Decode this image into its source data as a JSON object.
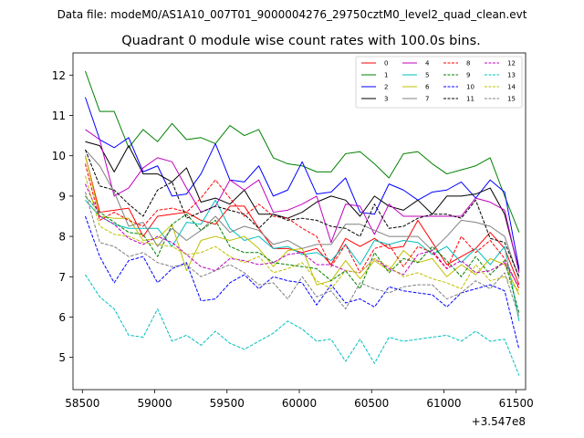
{
  "chart_data": {
    "type": "line",
    "suptitle": "Data file: modeM0/AS1A10_007T01_9000004276_29750cztM0_level2_quad_clean.evt",
    "title": "Quadrant 0 module wise count rates with 100.0s bins.",
    "xlabel": "",
    "ylabel": "",
    "x_offset_label": "+3.547e8",
    "xlim": [
      58435,
      61565
    ],
    "ylim": [
      4.2,
      12.55
    ],
    "xticks": [
      58500,
      59000,
      59500,
      60000,
      60500,
      61000,
      61500
    ],
    "yticks": [
      5,
      6,
      7,
      8,
      9,
      10,
      11,
      12
    ],
    "legend_position": "top-right",
    "x": [
      58520,
      58620,
      58720,
      58820,
      58920,
      59020,
      59120,
      59220,
      59320,
      59420,
      59520,
      59620,
      59720,
      59820,
      59920,
      60020,
      60120,
      60220,
      60320,
      60420,
      60520,
      60620,
      60720,
      60820,
      60920,
      61020,
      61120,
      61220,
      61320,
      61420,
      61520
    ],
    "series": [
      {
        "name": "0",
        "color": "#ff0000",
        "dash": "solid",
        "values": [
          10.0,
          8.6,
          8.65,
          8.7,
          8.0,
          8.5,
          8.55,
          8.6,
          8.4,
          8.3,
          8.75,
          8.75,
          8.2,
          7.7,
          7.7,
          7.6,
          7.7,
          7.3,
          7.95,
          7.75,
          7.95,
          7.7,
          7.75,
          8.4,
          7.85,
          7.3,
          7.5,
          7.7,
          8.1,
          7.7,
          6.8
        ]
      },
      {
        "name": "1",
        "color": "#008000",
        "dash": "solid",
        "values": [
          12.1,
          11.1,
          11.1,
          10.2,
          10.65,
          10.35,
          10.8,
          10.4,
          10.45,
          10.3,
          10.75,
          10.5,
          10.65,
          9.95,
          9.8,
          9.75,
          9.6,
          9.6,
          10.05,
          10.1,
          9.8,
          9.45,
          10.05,
          10.1,
          9.8,
          9.55,
          9.65,
          9.75,
          9.95,
          9.0,
          8.1
        ]
      },
      {
        "name": "2",
        "color": "#0000ff",
        "dash": "solid",
        "values": [
          11.45,
          10.4,
          10.2,
          10.45,
          9.6,
          9.75,
          9.0,
          9.05,
          9.55,
          10.3,
          9.4,
          9.35,
          9.75,
          9.0,
          9.15,
          9.85,
          9.05,
          9.1,
          9.45,
          8.6,
          8.55,
          9.3,
          9.15,
          8.9,
          9.1,
          9.15,
          9.35,
          8.95,
          9.4,
          9.1,
          7.2
        ]
      },
      {
        "name": "3",
        "color": "#000000",
        "dash": "solid",
        "values": [
          10.35,
          10.25,
          9.6,
          10.25,
          9.55,
          9.55,
          9.35,
          9.7,
          8.85,
          8.95,
          8.8,
          9.15,
          8.55,
          8.55,
          8.45,
          8.6,
          8.85,
          9.0,
          8.9,
          8.5,
          9.0,
          8.75,
          8.65,
          8.9,
          8.55,
          9.0,
          9.0,
          9.05,
          9.2,
          8.55,
          7.15
        ]
      },
      {
        "name": "4",
        "color": "#bf00bf",
        "dash": "solid",
        "values": [
          10.65,
          10.4,
          9.0,
          9.2,
          9.7,
          9.95,
          9.85,
          9.2,
          8.6,
          8.75,
          9.4,
          9.15,
          9.4,
          8.6,
          8.65,
          8.8,
          9.0,
          7.85,
          8.8,
          8.75,
          8.05,
          8.8,
          8.5,
          8.5,
          8.5,
          8.5,
          8.5,
          8.95,
          8.85,
          8.65,
          7.1
        ]
      },
      {
        "name": "5",
        "color": "#00bfbf",
        "dash": "solid",
        "values": [
          8.9,
          8.5,
          8.3,
          8.2,
          8.2,
          8.2,
          7.75,
          8.35,
          8.3,
          8.9,
          8.2,
          7.9,
          8.0,
          7.7,
          7.75,
          7.55,
          7.6,
          7.4,
          7.8,
          7.3,
          7.9,
          7.8,
          7.9,
          7.85,
          7.55,
          7.75,
          7.35,
          7.7,
          7.3,
          7.75,
          5.9
        ]
      },
      {
        "name": "6",
        "color": "#bfbf00",
        "dash": "solid",
        "values": [
          10.0,
          8.5,
          8.45,
          8.45,
          7.9,
          7.95,
          8.3,
          7.15,
          7.9,
          8.0,
          7.9,
          8.0,
          7.7,
          7.25,
          7.65,
          7.7,
          6.8,
          6.9,
          7.4,
          6.95,
          7.4,
          7.15,
          7.65,
          7.35,
          7.45,
          7.0,
          7.3,
          7.05,
          7.45,
          7.3,
          6.55
        ]
      },
      {
        "name": "7",
        "color": "#808080",
        "dash": "solid",
        "values": [
          10.15,
          9.75,
          9.1,
          8.25,
          8.35,
          7.75,
          8.2,
          7.9,
          8.15,
          8.5,
          8.1,
          8.25,
          8.15,
          7.8,
          7.9,
          7.7,
          7.8,
          7.8,
          8.3,
          8.3,
          8.15,
          8.0,
          8.0,
          8.0,
          7.65,
          8.0,
          8.4,
          8.35,
          8.25,
          8.0,
          6.95
        ]
      },
      {
        "name": "8",
        "color": "#ff0000",
        "dash": "dashed",
        "values": [
          9.8,
          8.4,
          8.6,
          8.4,
          8.25,
          8.65,
          8.7,
          8.6,
          8.95,
          9.4,
          8.95,
          8.5,
          8.8,
          8.5,
          8.45,
          8.2,
          8.0,
          7.25,
          7.8,
          7.1,
          7.7,
          7.8,
          7.25,
          7.75,
          7.6,
          7.2,
          8.0,
          7.6,
          7.9,
          7.45,
          6.7
        ]
      },
      {
        "name": "9",
        "color": "#008000",
        "dash": "dashed",
        "values": [
          9.0,
          8.6,
          8.35,
          8.1,
          8.05,
          7.5,
          8.3,
          8.55,
          8.15,
          8.4,
          7.75,
          7.6,
          7.6,
          7.35,
          7.3,
          7.25,
          7.2,
          6.9,
          7.15,
          6.7,
          7.6,
          7.1,
          7.45,
          7.35,
          7.75,
          7.4,
          7.0,
          7.5,
          7.05,
          7.4,
          6.1
        ]
      },
      {
        "name": "10",
        "color": "#0000ff",
        "dash": "dashed",
        "values": [
          8.5,
          7.5,
          6.85,
          7.4,
          7.5,
          6.85,
          7.2,
          7.35,
          6.4,
          6.45,
          6.85,
          7.05,
          6.7,
          7.0,
          6.9,
          6.85,
          6.3,
          6.8,
          6.35,
          6.45,
          6.25,
          6.75,
          6.65,
          6.6,
          6.55,
          6.25,
          6.6,
          6.7,
          6.8,
          6.65,
          5.2
        ]
      },
      {
        "name": "11",
        "color": "#000000",
        "dash": "dashed",
        "values": [
          10.15,
          9.25,
          9.15,
          8.8,
          8.5,
          9.15,
          9.35,
          8.45,
          8.6,
          8.75,
          8.65,
          8.55,
          8.2,
          8.55,
          8.4,
          8.45,
          8.4,
          8.25,
          8.2,
          8.0,
          8.8,
          8.2,
          8.25,
          8.45,
          8.55,
          8.55,
          8.45,
          8.9,
          7.95,
          7.85,
          7.0
        ]
      },
      {
        "name": "12",
        "color": "#bf00bf",
        "dash": "dashed",
        "values": [
          9.3,
          8.5,
          8.3,
          7.95,
          7.8,
          8.0,
          7.85,
          7.55,
          7.25,
          7.15,
          7.45,
          7.4,
          7.3,
          7.35,
          7.55,
          7.6,
          7.3,
          7.3,
          7.15,
          7.1,
          7.45,
          7.2,
          7.05,
          7.55,
          7.65,
          7.2,
          7.4,
          7.1,
          7.15,
          7.35,
          6.75
        ]
      },
      {
        "name": "13",
        "color": "#00bfbf",
        "dash": "dashed",
        "values": [
          7.05,
          6.5,
          6.2,
          5.55,
          5.5,
          6.2,
          5.4,
          5.55,
          5.3,
          5.65,
          5.35,
          5.2,
          5.4,
          5.6,
          5.9,
          5.7,
          5.4,
          5.45,
          4.9,
          5.45,
          4.85,
          5.5,
          5.4,
          5.45,
          5.5,
          5.55,
          5.4,
          5.65,
          5.4,
          5.45,
          4.55
        ]
      },
      {
        "name": "14",
        "color": "#bfbf00",
        "dash": "dashed",
        "values": [
          9.5,
          8.25,
          8.05,
          8.0,
          7.85,
          7.8,
          7.75,
          7.55,
          7.6,
          7.75,
          7.5,
          7.35,
          7.5,
          7.1,
          7.2,
          7.35,
          6.9,
          6.7,
          7.15,
          7.1,
          7.45,
          7.25,
          7.0,
          7.1,
          6.95,
          6.85,
          6.7,
          7.3,
          6.9,
          7.0,
          6.65
        ]
      },
      {
        "name": "15",
        "color": "#808080",
        "dash": "dashed",
        "values": [
          9.1,
          7.85,
          7.75,
          7.5,
          7.6,
          7.35,
          7.25,
          7.3,
          7.0,
          7.15,
          7.3,
          7.1,
          6.8,
          6.85,
          6.45,
          7.0,
          6.5,
          6.65,
          6.2,
          6.85,
          6.7,
          6.6,
          6.75,
          6.8,
          6.8,
          6.45,
          6.6,
          6.9,
          6.7,
          7.1,
          6.0
        ]
      }
    ]
  }
}
